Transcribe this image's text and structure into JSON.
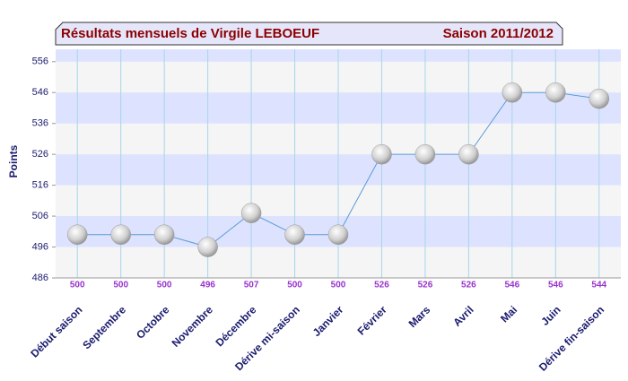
{
  "chart_data": {
    "type": "line",
    "title": "Résultats mensuels de  Virgile LEBOEUF",
    "subtitle": "Saison 2011/2012",
    "y_label": "Points",
    "categories": [
      "Début saison",
      "Septembre",
      "Octobre",
      "Novembre",
      "Décembre",
      "Dérive mi-saison",
      "Janvier",
      "Février",
      "Mars",
      "Avril",
      "Mai",
      "Juin",
      "Dérive fin-saison"
    ],
    "values": [
      500,
      500,
      500,
      496,
      507,
      500,
      500,
      526,
      526,
      526,
      546,
      546,
      544
    ],
    "color": "#5b9bd5",
    "label_color": "#9933cc",
    "ylim": [
      486,
      560
    ],
    "yticks": [
      486,
      496,
      506,
      516,
      526,
      536,
      546,
      556
    ],
    "grid": true
  }
}
